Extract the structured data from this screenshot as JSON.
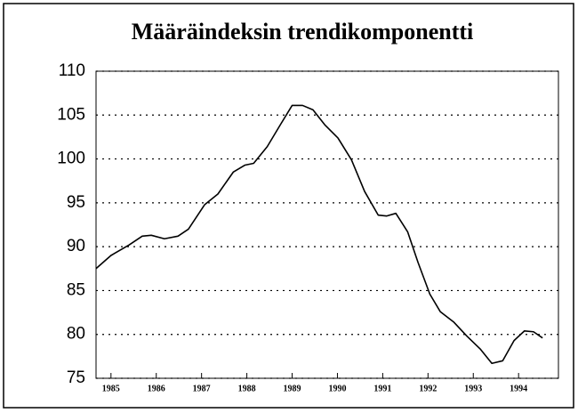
{
  "chart_data": {
    "type": "line",
    "title": "Määräindeksin trendikomponentti",
    "x": [
      1984.67,
      1985.0,
      1985.4,
      1985.69,
      1985.89,
      1986.18,
      1986.48,
      1986.71,
      1987.07,
      1987.36,
      1987.7,
      1987.96,
      1988.15,
      1988.45,
      1988.74,
      1989.0,
      1989.23,
      1989.46,
      1989.72,
      1990.01,
      1990.31,
      1990.6,
      1990.9,
      1991.09,
      1991.29,
      1991.55,
      1991.78,
      1992.04,
      1992.27,
      1992.57,
      1992.86,
      1993.16,
      1993.41,
      1993.65,
      1993.9,
      1994.13,
      1994.33,
      1994.53
    ],
    "series": [
      {
        "name": "Määräindeksi",
        "color": "#000000",
        "values": [
          87.5,
          89.0,
          90.2,
          91.2,
          91.3,
          90.9,
          91.2,
          92.0,
          94.8,
          96.0,
          98.5,
          99.3,
          99.5,
          101.4,
          103.9,
          106.1,
          106.1,
          105.6,
          103.9,
          102.4,
          99.9,
          96.3,
          93.6,
          93.5,
          93.8,
          91.7,
          88.2,
          84.6,
          82.6,
          81.4,
          79.8,
          78.3,
          76.7,
          77.0,
          79.3,
          80.4,
          80.3,
          79.6
        ]
      }
    ],
    "xlim": [
      1984.67,
      1994.88
    ],
    "xticks": [
      1985,
      1986,
      1987,
      1988,
      1989,
      1990,
      1991,
      1992,
      1993,
      1994
    ],
    "ylim": [
      75,
      110
    ],
    "yticks": [
      75,
      80,
      85,
      90,
      95,
      100,
      105,
      110
    ],
    "grid": true
  }
}
